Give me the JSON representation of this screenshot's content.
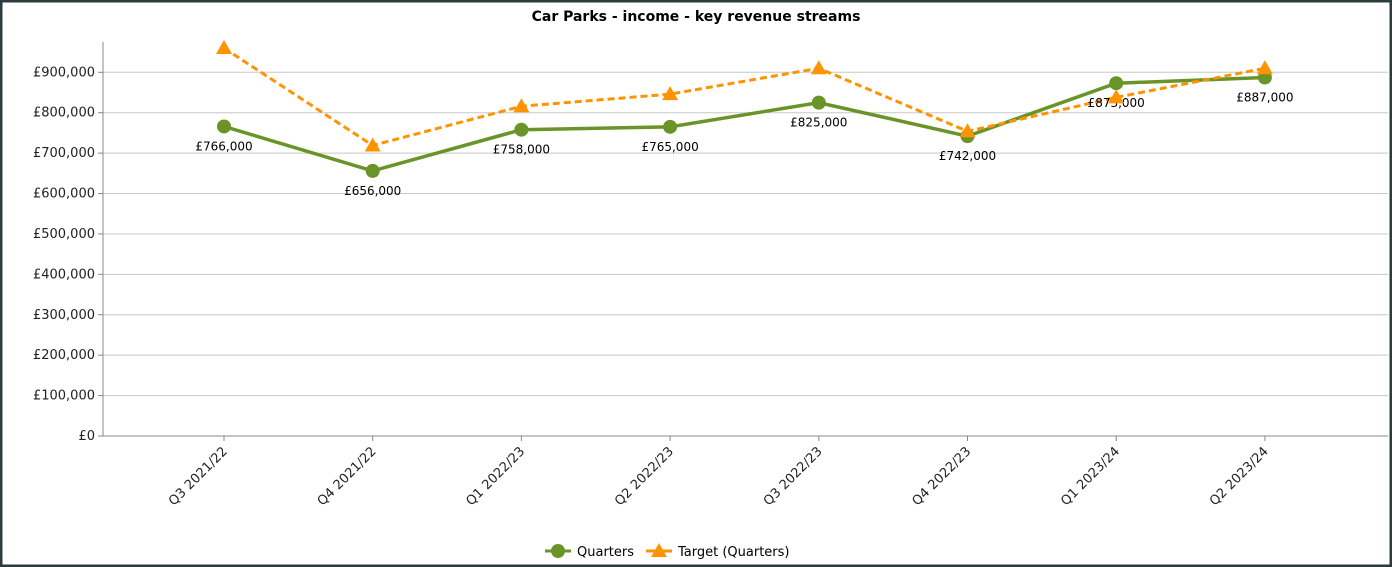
{
  "chart_data": {
    "type": "line",
    "title": "Car Parks - income - key revenue streams",
    "categories": [
      "Q3 2021/22",
      "Q4 2021/22",
      "Q1 2022/23",
      "Q2 2022/23",
      "Q3 2022/23",
      "Q4 2022/23",
      "Q1 2023/24",
      "Q2 2023/24"
    ],
    "series": [
      {
        "name": "Quarters",
        "color": "#6b9428",
        "marker": "circle",
        "dashed": false,
        "values": [
          766000,
          656000,
          758000,
          765000,
          825000,
          742000,
          873000,
          887000
        ],
        "value_labels": [
          "£766,000",
          "£656,000",
          "£758,000",
          "£765,000",
          "£825,000",
          "£742,000",
          "£873,000",
          "£887,000"
        ]
      },
      {
        "name": "Target (Quarters)",
        "color": "#ff9400",
        "marker": "triangle",
        "dashed": true,
        "values": [
          960000,
          719000,
          816000,
          846000,
          910000,
          754000,
          838000,
          910000
        ]
      }
    ],
    "ylim": [
      0,
      975000
    ],
    "yticks": [
      {
        "value": 0,
        "label": "£0"
      },
      {
        "value": 100000,
        "label": "£100,000"
      },
      {
        "value": 200000,
        "label": "£200,000"
      },
      {
        "value": 300000,
        "label": "£300,000"
      },
      {
        "value": 400000,
        "label": "£400,000"
      },
      {
        "value": 500000,
        "label": "£500,000"
      },
      {
        "value": 600000,
        "label": "£600,000"
      },
      {
        "value": 700000,
        "label": "£700,000"
      },
      {
        "value": 800000,
        "label": "£800,000"
      },
      {
        "value": 900000,
        "label": "£900,000"
      }
    ],
    "grid": true,
    "legend": "bottom"
  }
}
